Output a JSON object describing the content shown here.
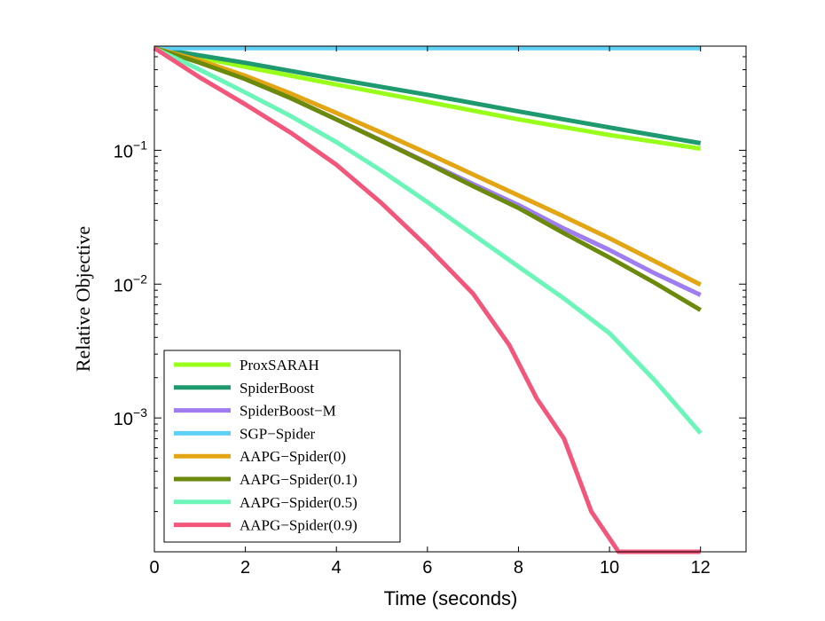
{
  "chart_data": {
    "type": "line",
    "title": "",
    "xlabel": "Time (seconds)",
    "ylabel": "Relative Objective",
    "y_scale": "log",
    "xlim": [
      0,
      13
    ],
    "ylim": [
      0.0001,
      0.6
    ],
    "x_ticks": [
      0,
      2,
      4,
      6,
      8,
      10,
      12
    ],
    "x_tick_labels": [
      "0",
      "2",
      "4",
      "6",
      "8",
      "10",
      "12"
    ],
    "y_ticks": [
      {
        "value": 0.1,
        "base": "10",
        "exp": "−1"
      },
      {
        "value": 0.01,
        "base": "10",
        "exp": "−2"
      },
      {
        "value": 0.001,
        "base": "10",
        "exp": "−3"
      }
    ],
    "grid": false,
    "legend_position": "bottom-left",
    "series": [
      {
        "name": "ProxSARAH",
        "color": "#99ff1a",
        "x": [
          0,
          2,
          4,
          6,
          8,
          10,
          12
        ],
        "y": [
          0.58,
          0.42,
          0.31,
          0.23,
          0.17,
          0.13,
          0.103
        ]
      },
      {
        "name": "SpiderBoost",
        "color": "#1f9a6e",
        "x": [
          0,
          2,
          4,
          6,
          8,
          10,
          12
        ],
        "y": [
          0.58,
          0.45,
          0.34,
          0.26,
          0.195,
          0.148,
          0.113
        ]
      },
      {
        "name": "SpiderBoost−M",
        "color": "#9f7df0",
        "x": [
          0,
          1,
          2,
          3,
          4,
          5,
          6,
          7,
          8,
          9,
          10,
          11,
          12
        ],
        "y": [
          0.58,
          0.46,
          0.34,
          0.245,
          0.17,
          0.118,
          0.081,
          0.056,
          0.039,
          0.026,
          0.018,
          0.012,
          0.0083
        ]
      },
      {
        "name": "SGP−Spider",
        "color": "#5fd0f5",
        "x": [
          0,
          12
        ],
        "y": [
          0.58,
          0.58
        ]
      },
      {
        "name": "AAPG−Spider(0)",
        "color": "#e3a514",
        "x": [
          0,
          1,
          2,
          3,
          4,
          5,
          6,
          7,
          8,
          9,
          10,
          11,
          12
        ],
        "y": [
          0.58,
          0.47,
          0.36,
          0.265,
          0.19,
          0.135,
          0.095,
          0.066,
          0.046,
          0.032,
          0.022,
          0.0148,
          0.0099
        ]
      },
      {
        "name": "AAPG−Spider(0.1)",
        "color": "#6b8a0b",
        "x": [
          0,
          1,
          2,
          3,
          4,
          5,
          6,
          7,
          8,
          9,
          10,
          11,
          12
        ],
        "y": [
          0.58,
          0.45,
          0.34,
          0.245,
          0.17,
          0.117,
          0.08,
          0.054,
          0.037,
          0.024,
          0.0158,
          0.0102,
          0.0064
        ]
      },
      {
        "name": "AAPG−Spider(0.5)",
        "color": "#6bf5b8",
        "x": [
          0,
          1,
          2,
          3,
          4,
          5,
          6,
          7,
          8,
          9,
          10,
          11,
          12
        ],
        "y": [
          0.58,
          0.4,
          0.27,
          0.18,
          0.115,
          0.07,
          0.041,
          0.0235,
          0.0135,
          0.0078,
          0.0043,
          0.0019,
          0.00077
        ]
      },
      {
        "name": "AAPG−Spider(0.9)",
        "color": "#f2567a",
        "x": [
          0,
          1,
          2,
          3,
          4,
          5,
          6,
          7,
          7.8,
          8.4,
          9.0,
          9.6,
          10.2,
          12
        ],
        "y": [
          0.58,
          0.35,
          0.22,
          0.135,
          0.078,
          0.04,
          0.019,
          0.0085,
          0.0035,
          0.0014,
          0.0007,
          0.0002,
          0.0001,
          0.0001
        ]
      }
    ]
  }
}
